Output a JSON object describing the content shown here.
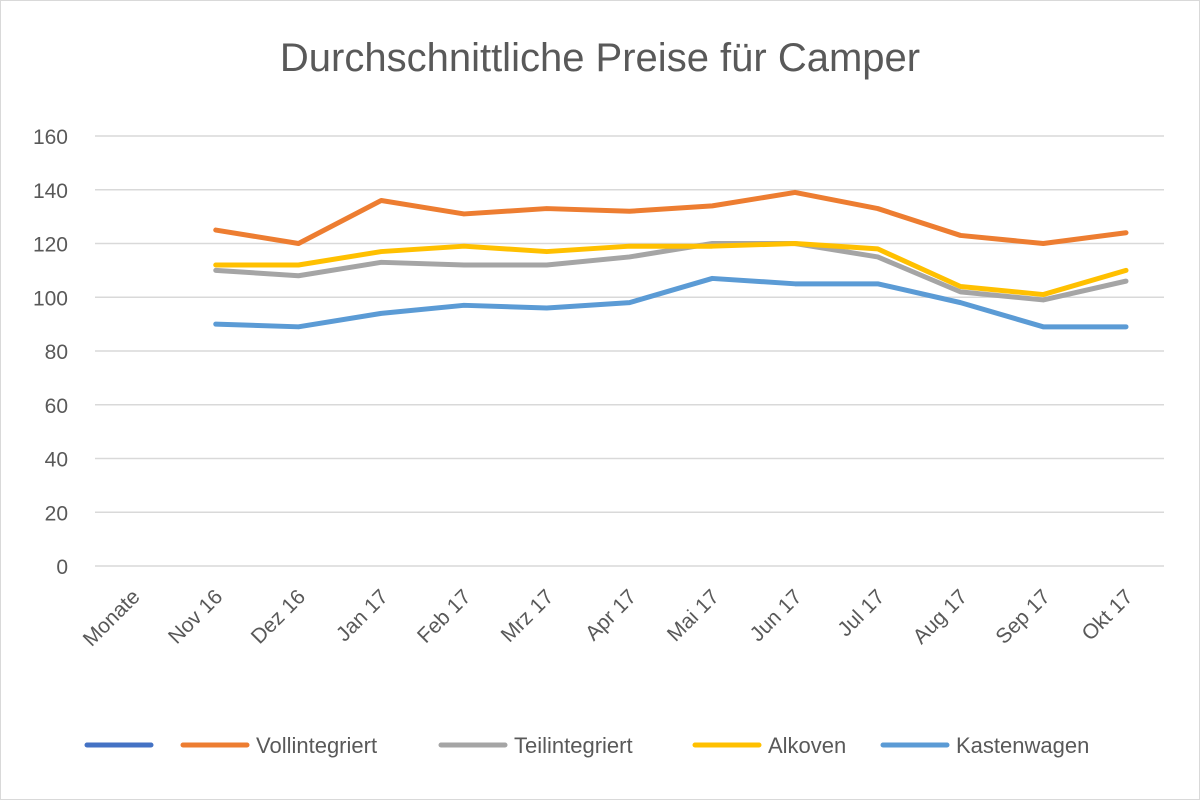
{
  "chart_data": {
    "type": "line",
    "title": "Durchschnittliche Preise für Camper",
    "xlabel": "",
    "ylabel": "",
    "ylim": [
      0,
      160
    ],
    "yticks": [
      0,
      20,
      40,
      60,
      80,
      100,
      120,
      140,
      160
    ],
    "grid": true,
    "legend_position": "bottom",
    "categories": [
      "Monate",
      "Nov 16",
      "Dez 16",
      "Jan 17",
      "Feb 17",
      "Mrz 17",
      "Apr 17",
      "Mai 17",
      "Jun 17",
      "Jul 17",
      "Aug 17",
      "Sep 17",
      "Okt 17"
    ],
    "series": [
      {
        "name": "",
        "color": "#4472C4",
        "values": [
          null,
          null,
          null,
          null,
          null,
          null,
          null,
          null,
          null,
          null,
          null,
          null,
          null
        ]
      },
      {
        "name": "Vollintegriert",
        "color": "#ED7D31",
        "values": [
          null,
          125,
          120,
          136,
          131,
          133,
          132,
          134,
          139,
          133,
          123,
          120,
          124
        ]
      },
      {
        "name": "Teilintegriert",
        "color": "#A5A5A5",
        "values": [
          null,
          110,
          108,
          113,
          112,
          112,
          115,
          120,
          120,
          115,
          102,
          99,
          106
        ]
      },
      {
        "name": "Alkoven",
        "color": "#FFC000",
        "values": [
          null,
          112,
          112,
          117,
          119,
          117,
          119,
          119,
          120,
          118,
          104,
          101,
          110
        ]
      },
      {
        "name": "Kastenwagen",
        "color": "#5B9BD5",
        "values": [
          null,
          90,
          89,
          94,
          97,
          96,
          98,
          107,
          105,
          105,
          98,
          89,
          89
        ]
      }
    ]
  }
}
